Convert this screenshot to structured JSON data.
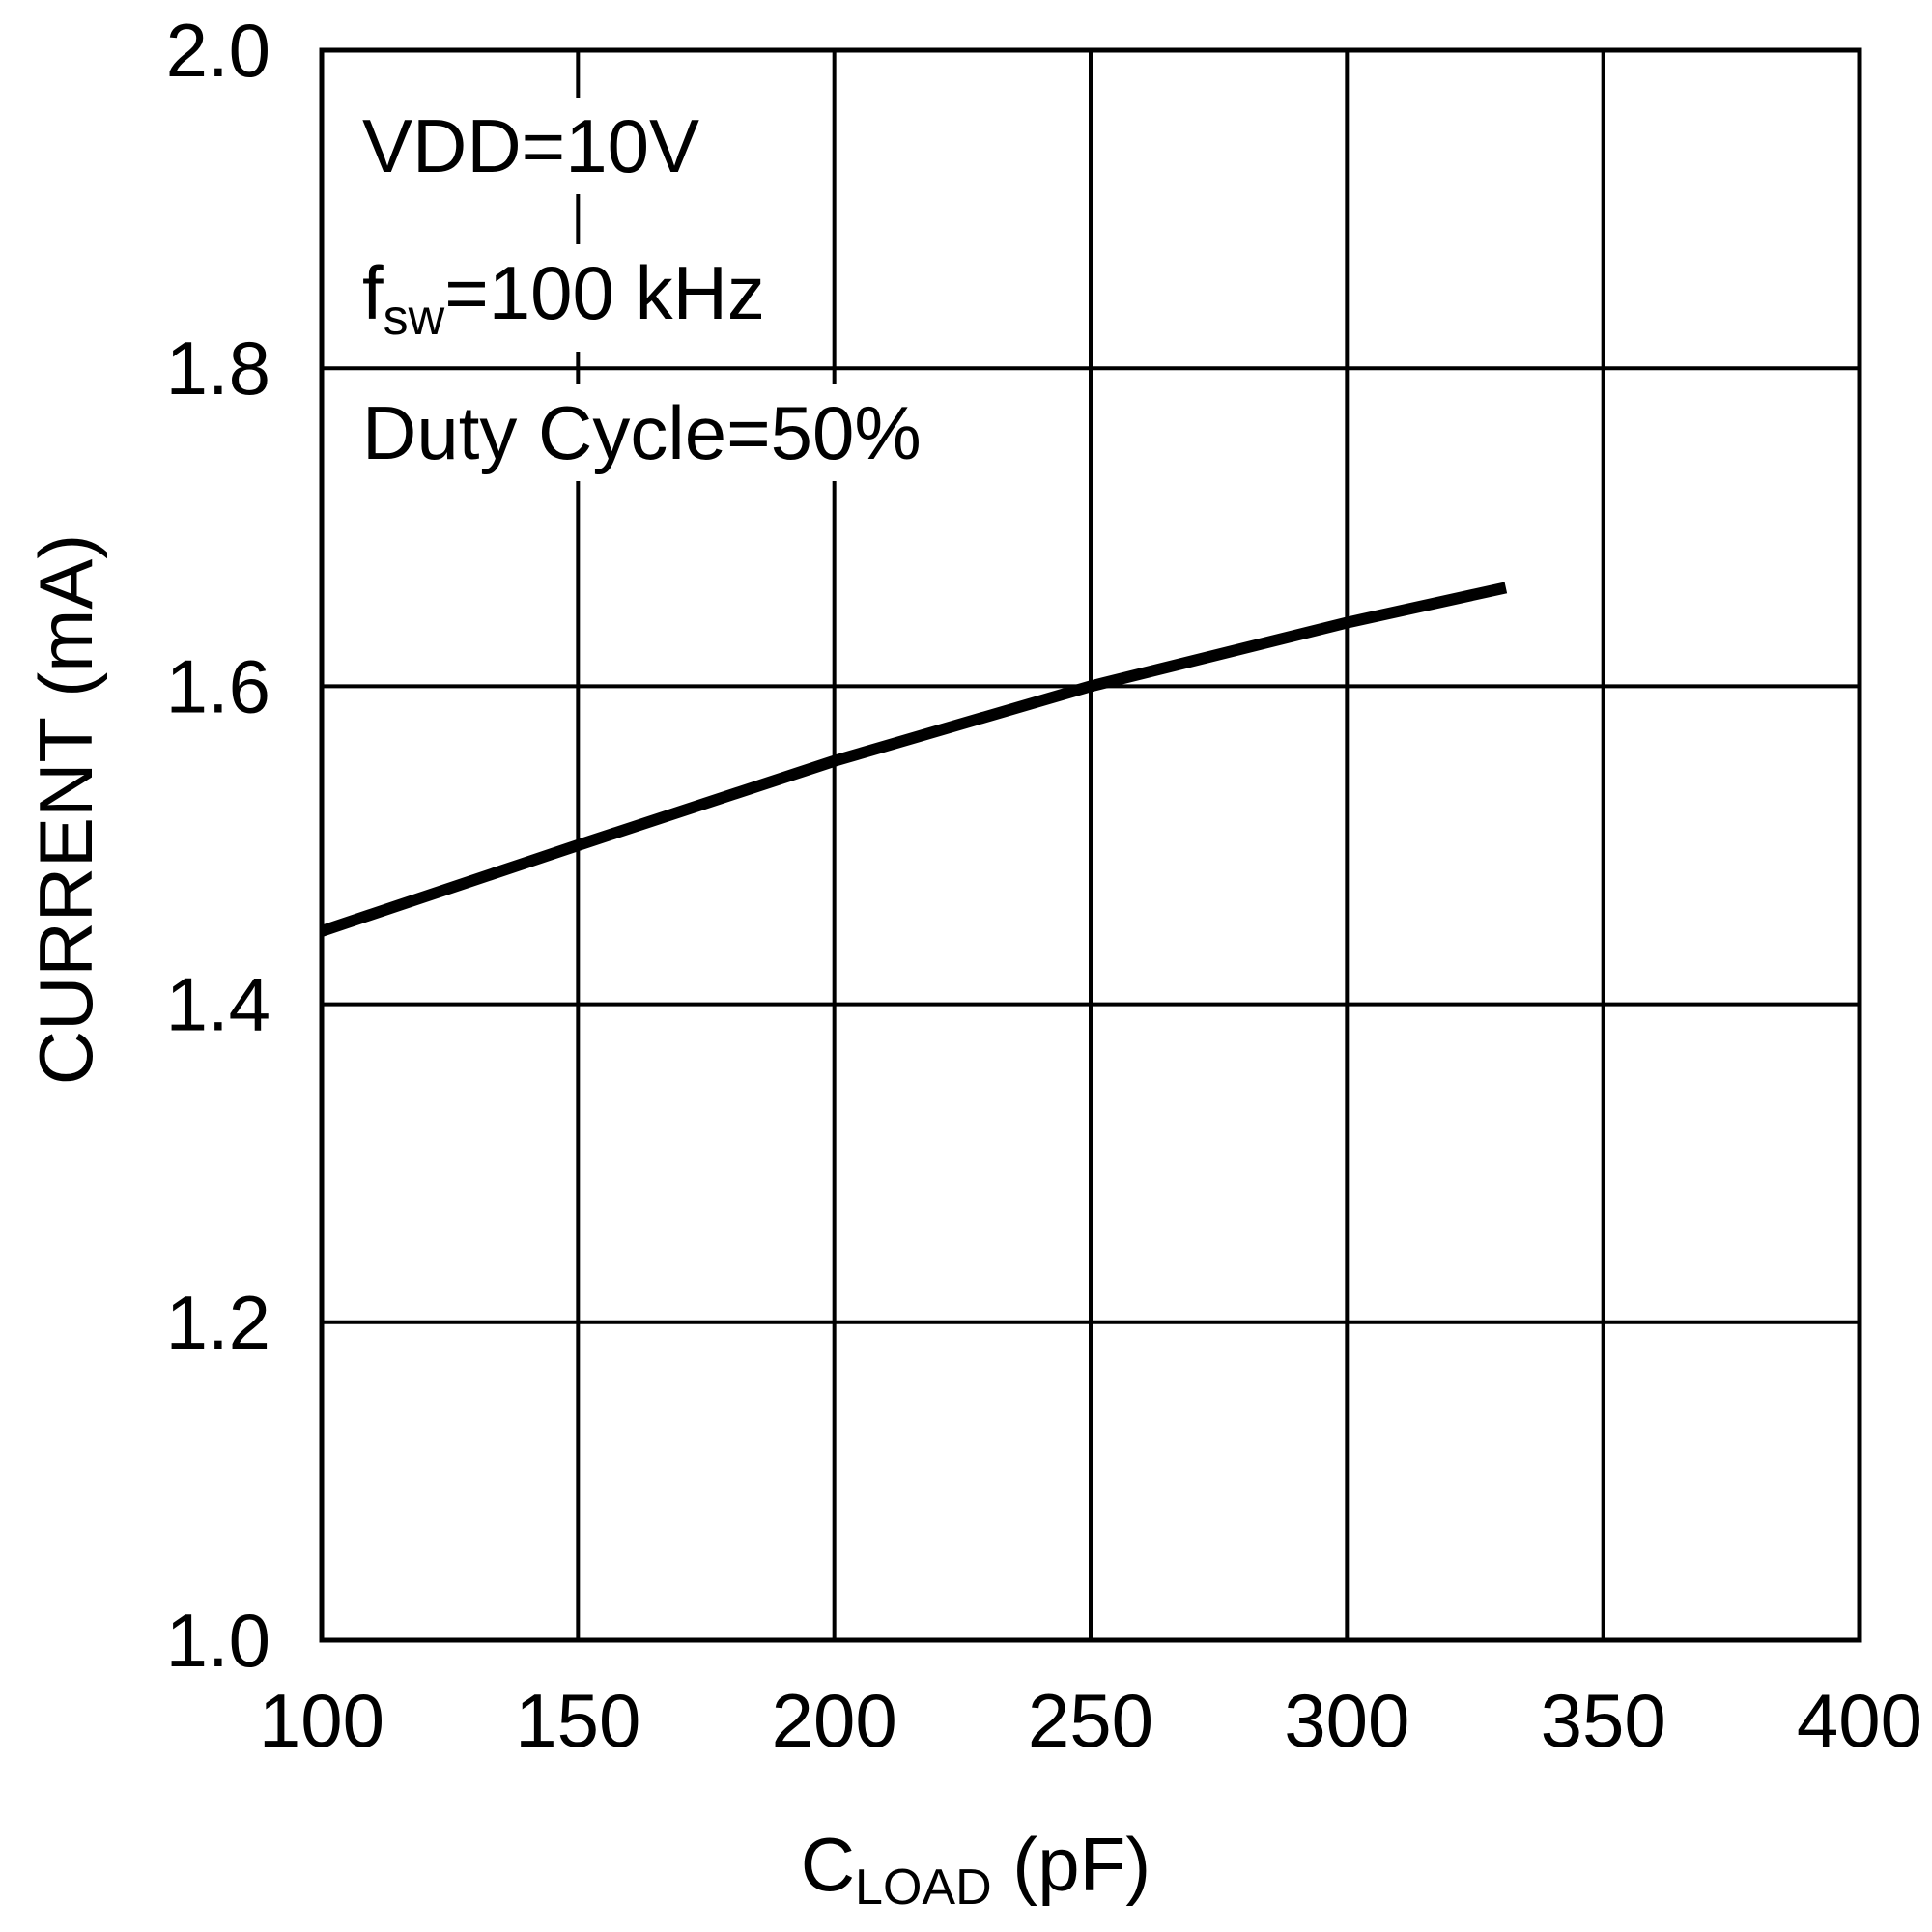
{
  "chart_data": {
    "type": "line",
    "title": "",
    "xlabel": {
      "main": "C",
      "sub": "LOAD",
      "rest": " (pF)"
    },
    "ylabel": "CURRENT (mA)",
    "xlim": [
      100,
      400
    ],
    "ylim": [
      1.0,
      2.0
    ],
    "xticks": [
      100,
      150,
      200,
      250,
      300,
      350,
      400
    ],
    "yticks": [
      1.0,
      1.2,
      1.4,
      1.6,
      1.8,
      2.0
    ],
    "xtick_labels": [
      "100",
      "150",
      "200",
      "250",
      "300",
      "350",
      "400"
    ],
    "ytick_labels": [
      "1.0",
      "1.2",
      "1.4",
      "1.6",
      "1.8",
      "2.0"
    ],
    "grid": true,
    "annotations": [
      {
        "main": "VDD=10V",
        "sub": "",
        "rest": ""
      },
      {
        "main": "f",
        "sub": "sw",
        "rest": "=100 kHz"
      },
      {
        "main": "Duty Cycle=50%",
        "sub": "",
        "rest": ""
      }
    ],
    "series": [
      {
        "name": "Current",
        "x": [
          100,
          150,
          200,
          250,
          300,
          331
        ],
        "y": [
          1.446,
          1.5,
          1.553,
          1.6,
          1.64,
          1.662
        ]
      }
    ]
  },
  "colors": {
    "line": "#000000",
    "grid": "#000000",
    "background": "#ffffff"
  }
}
